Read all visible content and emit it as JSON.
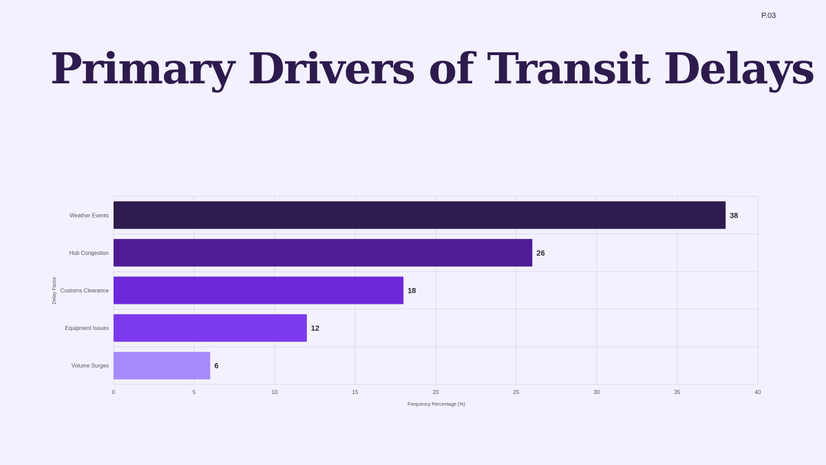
{
  "page": {
    "page_number": "P.03",
    "title": "Primary Drivers of Transit Delays"
  },
  "colors": {
    "background": "#f3f1fd",
    "title": "#2d1b4e",
    "bars": [
      "#2e1b4f",
      "#4f1c96",
      "#6d28d9",
      "#7c3aed",
      "#a78bfa"
    ]
  },
  "chart_data": {
    "type": "bar",
    "orientation": "horizontal",
    "categories": [
      "Weather Events",
      "Hub Congestion",
      "Customs Clearance",
      "Equipment Issues",
      "Volume Surges"
    ],
    "values": [
      38,
      26,
      18,
      12,
      6
    ],
    "xlabel": "Frequency Percentage (%)",
    "ylabel": "Delay Factor",
    "xlim": [
      0,
      40
    ],
    "xticks": [
      0,
      5,
      10,
      15,
      20,
      25,
      30,
      35,
      40
    ],
    "grid": true,
    "data_labels": true
  }
}
